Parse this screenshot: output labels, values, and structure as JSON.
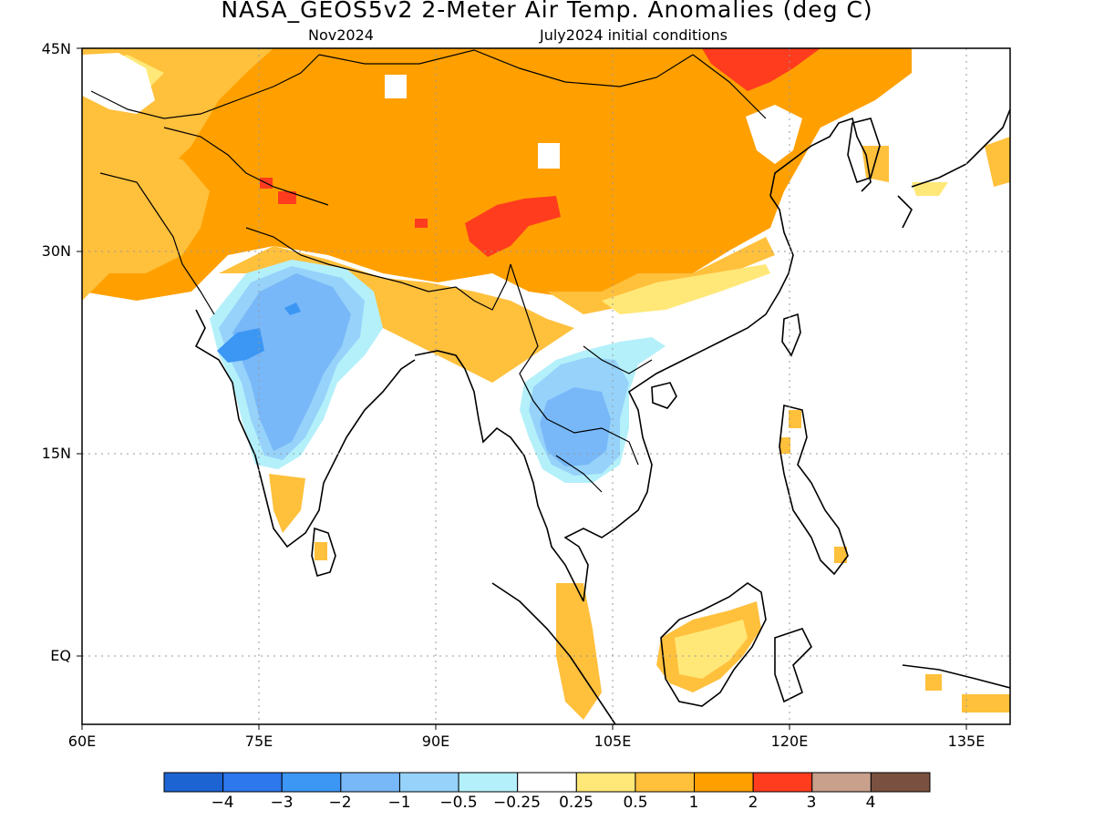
{
  "header": {
    "title": "NASA_GEOS5v2 2-Meter Air Temp. Anomalies (deg C)",
    "forecast_month": "Nov2024",
    "init": "July2024 initial conditions"
  },
  "axes": {
    "lat_labels": [
      "45N",
      "30N",
      "15N",
      "EQ"
    ],
    "lon_labels": [
      "60E",
      "75E",
      "90E",
      "105E",
      "120E",
      "135E"
    ]
  },
  "colorbar": {
    "colors": [
      "#1c64d2",
      "#2d78ec",
      "#3c96f4",
      "#78b8f8",
      "#96d2fa",
      "#b4f0fa",
      "#ffffff",
      "#ffe878",
      "#ffc03c",
      "#ffa000",
      "#ff3c1e",
      "#c8a08c",
      "#7a5040"
    ],
    "labels": [
      "−4",
      "−3",
      "−2",
      "−1",
      "−0.5",
      "−0.25",
      "0.25",
      "0.5",
      "1",
      "2",
      "3",
      "4"
    ]
  }
}
